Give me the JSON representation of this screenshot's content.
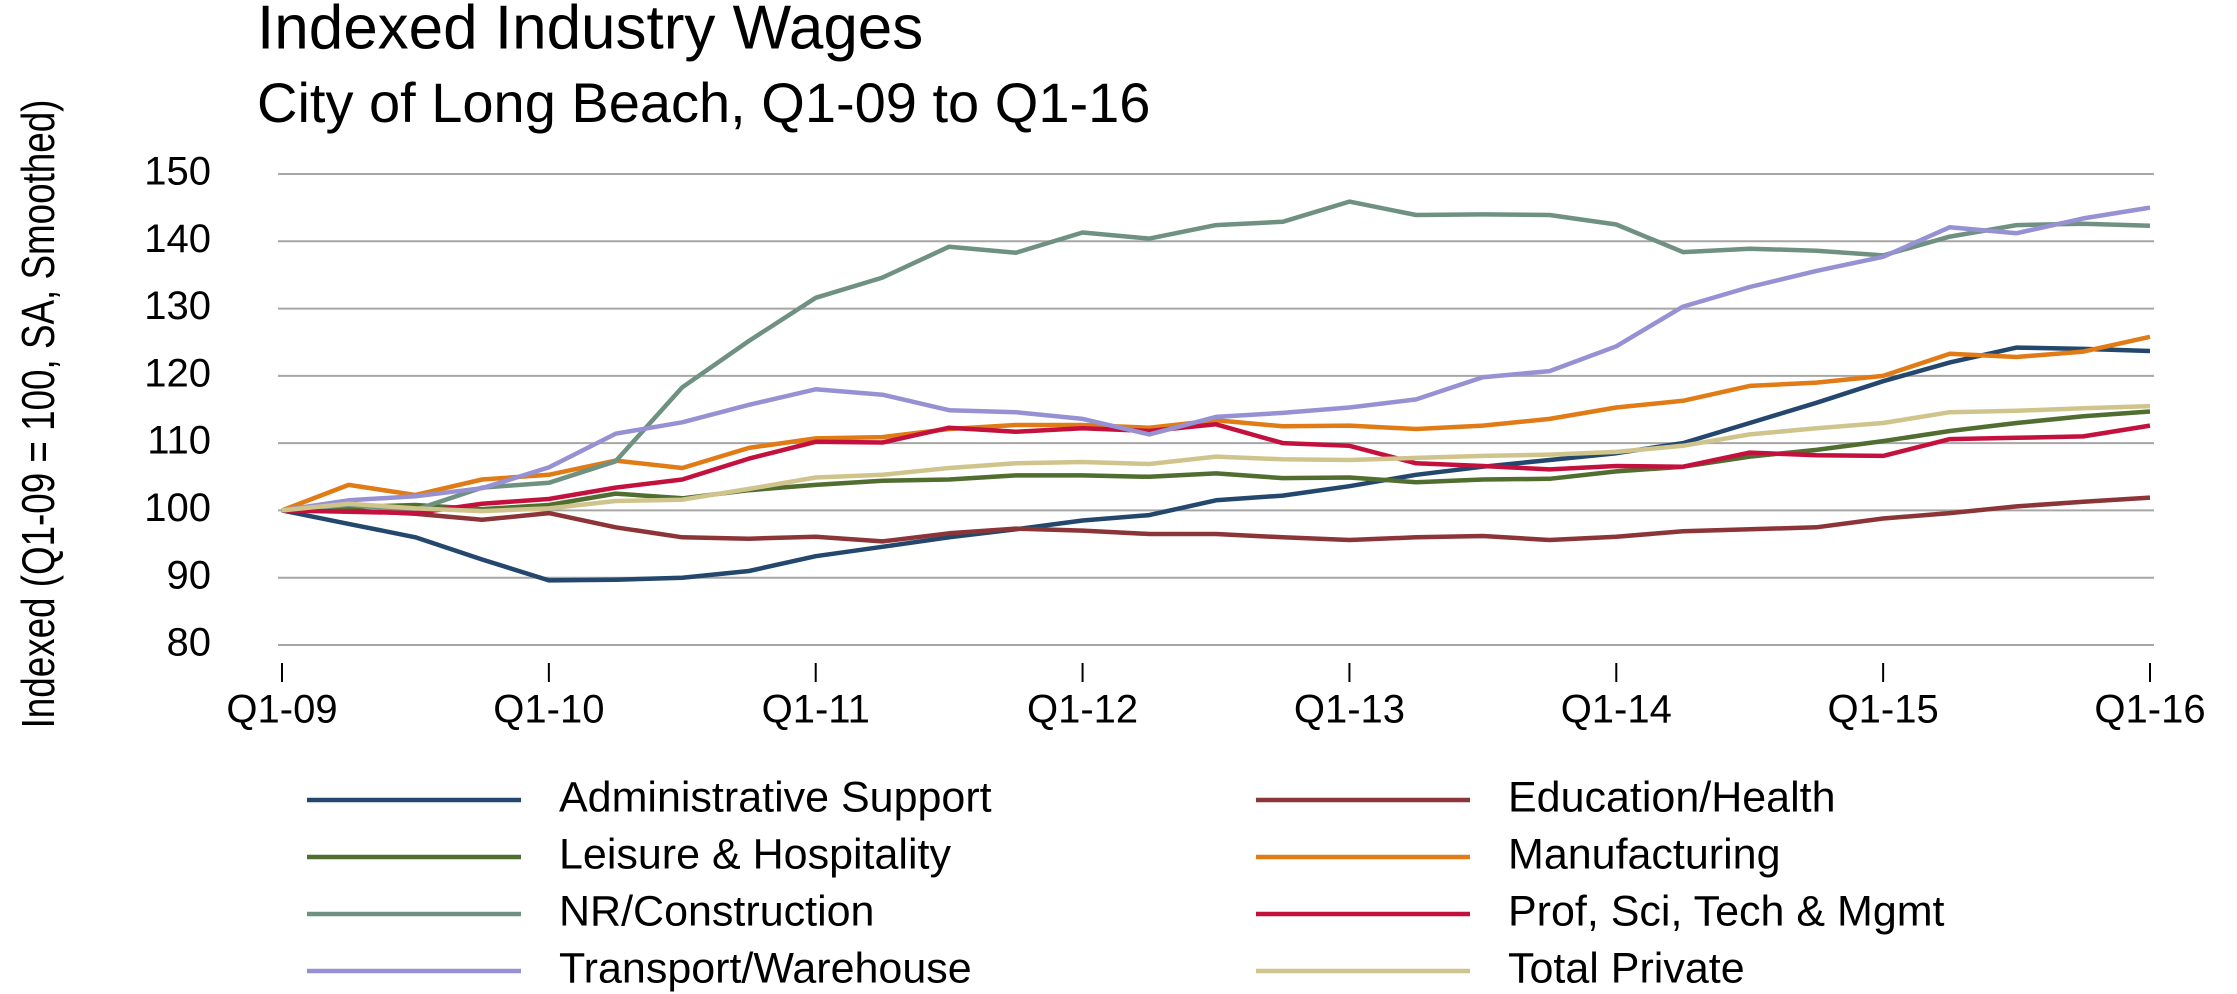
{
  "chart_data": {
    "type": "line",
    "title": "Indexed Industry Wages",
    "subtitle": "City of Long Beach, Q1-09 to Q1-16",
    "y_label": "Indexed (Q1-09 = 100, SA, Smoothed)",
    "categories": [
      "Q1-09",
      null,
      null,
      null,
      "Q1-10",
      null,
      null,
      null,
      "Q1-11",
      null,
      null,
      null,
      "Q1-12",
      null,
      null,
      null,
      "Q1-13",
      null,
      null,
      null,
      "Q1-14",
      null,
      null,
      null,
      "Q1-15",
      null,
      null,
      null,
      "Q1-16"
    ],
    "ylim": [
      80,
      150
    ],
    "yticks": [
      80,
      90,
      100,
      110,
      120,
      130,
      140,
      150
    ],
    "grid": true,
    "legend": "bottom",
    "series": [
      {
        "name": "Administrative Support",
        "color": "#23476d",
        "values": [
          100,
          98,
          96,
          92.7,
          89.6,
          89.7,
          90,
          91,
          93.2,
          94.6,
          96,
          97.2,
          98.5,
          99.3,
          101.5,
          102.2,
          103.6,
          105.3,
          106.5,
          107.5,
          108.5,
          110,
          113,
          116,
          119.2,
          122,
          124.2,
          124,
          123.7
        ]
      },
      {
        "name": "Education/Health",
        "color": "#8c3539",
        "values": [
          100,
          100,
          99.5,
          98.6,
          99.6,
          97.5,
          96,
          95.8,
          96.1,
          95.4,
          96.6,
          97.3,
          97,
          96.5,
          96.5,
          96,
          95.6,
          96,
          96.2,
          95.6,
          96.1,
          96.9,
          97.2,
          97.5,
          98.8,
          99.6,
          100.6,
          101.3,
          101.9
        ]
      },
      {
        "name": "Leisure & Hospitality",
        "color": "#4f6e2f",
        "values": [
          100,
          100.5,
          100.8,
          100.2,
          100.8,
          102.5,
          101.8,
          103,
          103.8,
          104.4,
          104.6,
          105.2,
          105.2,
          105,
          105.5,
          104.8,
          104.9,
          104.2,
          104.6,
          104.7,
          105.8,
          106.5,
          108,
          109,
          110.3,
          111.8,
          113,
          114,
          114.7
        ]
      },
      {
        "name": "Manufacturing",
        "color": "#e07b16",
        "values": [
          100,
          103.8,
          102.3,
          104.6,
          105.3,
          107.4,
          106.3,
          109.3,
          110.7,
          110.9,
          112.1,
          112.7,
          112.7,
          112.3,
          113.4,
          112.5,
          112.6,
          112.1,
          112.6,
          113.6,
          115.3,
          116.3,
          118.5,
          119,
          120,
          123.3,
          122.8,
          123.6,
          125.8
        ]
      },
      {
        "name": "NR/Construction",
        "color": "#6f9181",
        "values": [
          100,
          100.8,
          100.1,
          103.4,
          104.1,
          107.3,
          118.3,
          125.2,
          131.6,
          134.6,
          139.2,
          138.3,
          141.3,
          140.4,
          142.4,
          142.9,
          145.9,
          143.9,
          144,
          143.9,
          142.5,
          138.4,
          138.9,
          138.6,
          137.9,
          140.7,
          142.4,
          142.6,
          142.3
        ]
      },
      {
        "name": "Prof, Sci, Tech & Mgmt",
        "color": "#c4103c",
        "values": [
          100,
          99.8,
          99.6,
          101,
          101.7,
          103.4,
          104.6,
          107.7,
          110.2,
          110.1,
          112.3,
          111.7,
          112.2,
          111.8,
          112.8,
          110,
          109.6,
          107,
          106.6,
          106.1,
          106.6,
          106.5,
          108.6,
          108.2,
          108.1,
          110.6,
          110.8,
          111,
          112.6
        ]
      },
      {
        "name": "Transport/Warehouse",
        "color": "#9691d3",
        "values": [
          100,
          101.5,
          102.1,
          103.3,
          106.4,
          111.4,
          113.1,
          115.7,
          118,
          117.2,
          114.9,
          114.6,
          113.6,
          111.3,
          113.9,
          114.5,
          115.3,
          116.5,
          119.8,
          120.7,
          124.4,
          130.3,
          133.2,
          135.6,
          137.7,
          142.1,
          141.2,
          143.4,
          145
        ]
      },
      {
        "name": "Total Private",
        "color": "#cfc58c",
        "values": [
          100,
          101,
          100.3,
          99.9,
          100.3,
          101.4,
          101.6,
          103.2,
          104.9,
          105.3,
          106.3,
          107,
          107.2,
          106.9,
          108,
          107.6,
          107.5,
          107.8,
          108.1,
          108.3,
          108.7,
          109.6,
          111.3,
          112.2,
          113,
          114.6,
          114.8,
          115.2,
          115.5
        ]
      }
    ]
  }
}
